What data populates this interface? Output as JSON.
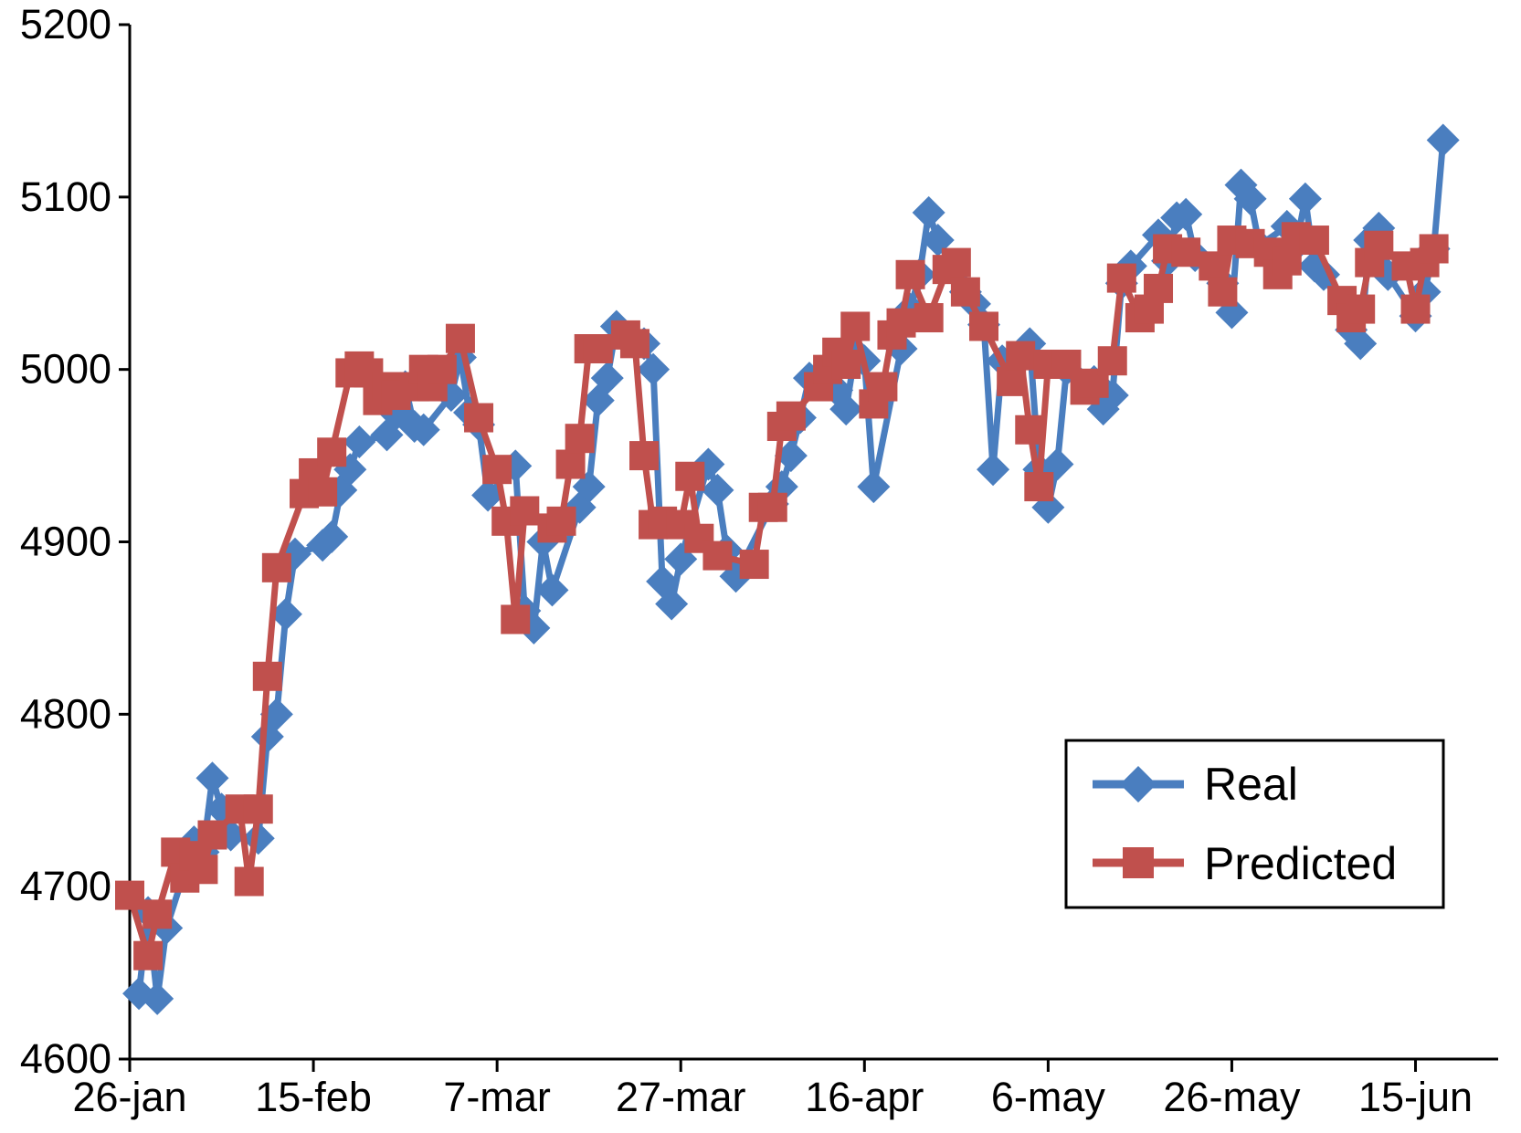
{
  "chart_data": {
    "type": "line",
    "title": "",
    "xlabel": "",
    "ylabel": "",
    "x_tick_labels": [
      "26-jan",
      "15-feb",
      "7-mar",
      "27-mar",
      "16-apr",
      "6-may",
      "26-may",
      "15-jun"
    ],
    "x_tick_dates": [
      "2015-01-26",
      "2015-02-15",
      "2015-03-07",
      "2015-03-27",
      "2015-04-16",
      "2015-05-06",
      "2015-05-26",
      "2015-06-15"
    ],
    "xlim": [
      "2015-01-26",
      "2015-06-24"
    ],
    "ylim": [
      4600,
      5200
    ],
    "y_ticks": [
      4600,
      4700,
      4800,
      4900,
      5000,
      5100,
      5200
    ],
    "grid": false,
    "legend_position": "lower-right",
    "series": [
      {
        "name": "Real",
        "color": "#4a7ebf",
        "marker": "diamond",
        "points": [
          [
            "2015-01-27",
            4638
          ],
          [
            "2015-01-28",
            4685
          ],
          [
            "2015-01-29",
            4635
          ],
          [
            "2015-01-30",
            4676
          ],
          [
            "2015-02-02",
            4726
          ],
          [
            "2015-02-03",
            4720
          ],
          [
            "2015-02-04",
            4763
          ],
          [
            "2015-02-05",
            4745
          ],
          [
            "2015-02-06",
            4730
          ],
          [
            "2015-02-09",
            4728
          ],
          [
            "2015-02-10",
            4787
          ],
          [
            "2015-02-11",
            4800
          ],
          [
            "2015-02-12",
            4858
          ],
          [
            "2015-02-13",
            4893
          ],
          [
            "2015-02-16",
            4898
          ],
          [
            "2015-02-17",
            4903
          ],
          [
            "2015-02-18",
            4930
          ],
          [
            "2015-02-19",
            4942
          ],
          [
            "2015-02-20",
            4958
          ],
          [
            "2015-02-23",
            4962
          ],
          [
            "2015-02-24",
            4974
          ],
          [
            "2015-02-25",
            4990
          ],
          [
            "2015-02-26",
            4967
          ],
          [
            "2015-02-27",
            4965
          ],
          [
            "2015-03-02",
            4985
          ],
          [
            "2015-03-03",
            5007
          ],
          [
            "2015-03-04",
            4975
          ],
          [
            "2015-03-05",
            4968
          ],
          [
            "2015-03-06",
            4927
          ],
          [
            "2015-03-09",
            4944
          ],
          [
            "2015-03-10",
            4860
          ],
          [
            "2015-03-11",
            4850
          ],
          [
            "2015-03-12",
            4900
          ],
          [
            "2015-03-13",
            4872
          ],
          [
            "2015-03-16",
            4920
          ],
          [
            "2015-03-17",
            4932
          ],
          [
            "2015-03-18",
            4982
          ],
          [
            "2015-03-19",
            4995
          ],
          [
            "2015-03-20",
            5025
          ],
          [
            "2015-03-23",
            5015
          ],
          [
            "2015-03-24",
            5000
          ],
          [
            "2015-03-25",
            4877
          ],
          [
            "2015-03-26",
            4864
          ],
          [
            "2015-03-27",
            4890
          ],
          [
            "2015-03-30",
            4945
          ],
          [
            "2015-03-31",
            4930
          ],
          [
            "2015-04-01",
            4895
          ],
          [
            "2015-04-02",
            4880
          ],
          [
            "2015-04-06",
            4922
          ],
          [
            "2015-04-07",
            4932
          ],
          [
            "2015-04-08",
            4950
          ],
          [
            "2015-04-09",
            4972
          ],
          [
            "2015-04-10",
            4995
          ],
          [
            "2015-04-13",
            4988
          ],
          [
            "2015-04-14",
            4977
          ],
          [
            "2015-04-15",
            5010
          ],
          [
            "2015-04-16",
            5005
          ],
          [
            "2015-04-17",
            4932
          ],
          [
            "2015-04-20",
            5012
          ],
          [
            "2015-04-21",
            5035
          ],
          [
            "2015-04-22",
            5055
          ],
          [
            "2015-04-23",
            5091
          ],
          [
            "2015-04-24",
            5075
          ],
          [
            "2015-04-27",
            5045
          ],
          [
            "2015-04-28",
            5038
          ],
          [
            "2015-04-29",
            5026
          ],
          [
            "2015-04-30",
            4942
          ],
          [
            "2015-05-01",
            5005
          ],
          [
            "2015-05-04",
            5015
          ],
          [
            "2015-05-05",
            4942
          ],
          [
            "2015-05-06",
            4920
          ],
          [
            "2015-05-07",
            4945
          ],
          [
            "2015-05-08",
            5000
          ],
          [
            "2015-05-11",
            4993
          ],
          [
            "2015-05-12",
            4977
          ],
          [
            "2015-05-13",
            4985
          ],
          [
            "2015-05-14",
            5050
          ],
          [
            "2015-05-15",
            5060
          ],
          [
            "2015-05-18",
            5078
          ],
          [
            "2015-05-19",
            5063
          ],
          [
            "2015-05-20",
            5088
          ],
          [
            "2015-05-21",
            5090
          ],
          [
            "2015-05-22",
            5066
          ],
          [
            "2015-05-25",
            5050
          ],
          [
            "2015-05-26",
            5033
          ],
          [
            "2015-05-27",
            5107
          ],
          [
            "2015-05-28",
            5099
          ],
          [
            "2015-05-29",
            5072
          ],
          [
            "2015-06-01",
            5083
          ],
          [
            "2015-06-02",
            5072
          ],
          [
            "2015-06-03",
            5099
          ],
          [
            "2015-06-04",
            5060
          ],
          [
            "2015-06-05",
            5055
          ],
          [
            "2015-06-08",
            5023
          ],
          [
            "2015-06-09",
            5015
          ],
          [
            "2015-06-10",
            5075
          ],
          [
            "2015-06-11",
            5082
          ],
          [
            "2015-06-12",
            5055
          ],
          [
            "2015-06-15",
            5031
          ],
          [
            "2015-06-16",
            5045
          ],
          [
            "2015-06-17",
            5070
          ],
          [
            "2015-06-18",
            5133
          ]
        ]
      },
      {
        "name": "Predicted",
        "color": "#c0504d",
        "marker": "square",
        "points": [
          [
            "2015-01-26",
            4695
          ],
          [
            "2015-01-28",
            4660
          ],
          [
            "2015-01-29",
            4684
          ],
          [
            "2015-01-31",
            4720
          ],
          [
            "2015-02-01",
            4705
          ],
          [
            "2015-02-02",
            4718
          ],
          [
            "2015-02-03",
            4710
          ],
          [
            "2015-02-04",
            4730
          ],
          [
            "2015-02-07",
            4745
          ],
          [
            "2015-02-08",
            4703
          ],
          [
            "2015-02-09",
            4745
          ],
          [
            "2015-02-10",
            4822
          ],
          [
            "2015-02-11",
            4885
          ],
          [
            "2015-02-14",
            4928
          ],
          [
            "2015-02-15",
            4940
          ],
          [
            "2015-02-16",
            4929
          ],
          [
            "2015-02-17",
            4952
          ],
          [
            "2015-02-19",
            4998
          ],
          [
            "2015-02-20",
            5002
          ],
          [
            "2015-02-21",
            4998
          ],
          [
            "2015-02-22",
            4982
          ],
          [
            "2015-02-23",
            4990
          ],
          [
            "2015-02-24",
            4985
          ],
          [
            "2015-02-26",
            4990
          ],
          [
            "2015-02-27",
            5000
          ],
          [
            "2015-02-28",
            4990
          ],
          [
            "2015-03-01",
            5000
          ],
          [
            "2015-03-03",
            5018
          ],
          [
            "2015-03-05",
            4972
          ],
          [
            "2015-03-07",
            4942
          ],
          [
            "2015-03-08",
            4912
          ],
          [
            "2015-03-09",
            4855
          ],
          [
            "2015-03-10",
            4918
          ],
          [
            "2015-03-13",
            4908
          ],
          [
            "2015-03-14",
            4912
          ],
          [
            "2015-03-15",
            4945
          ],
          [
            "2015-03-16",
            4960
          ],
          [
            "2015-03-17",
            5012
          ],
          [
            "2015-03-18",
            5012
          ],
          [
            "2015-03-21",
            5020
          ],
          [
            "2015-03-22",
            5015
          ],
          [
            "2015-03-23",
            4950
          ],
          [
            "2015-03-24",
            4910
          ],
          [
            "2015-03-25",
            4912
          ],
          [
            "2015-03-27",
            4910
          ],
          [
            "2015-03-28",
            4938
          ],
          [
            "2015-03-29",
            4902
          ],
          [
            "2015-03-31",
            4892
          ],
          [
            "2015-04-04",
            4887
          ],
          [
            "2015-04-05",
            4920
          ],
          [
            "2015-04-06",
            4920
          ],
          [
            "2015-04-07",
            4967
          ],
          [
            "2015-04-08",
            4973
          ],
          [
            "2015-04-11",
            4990
          ],
          [
            "2015-04-12",
            5000
          ],
          [
            "2015-04-13",
            5010
          ],
          [
            "2015-04-14",
            5003
          ],
          [
            "2015-04-15",
            5025
          ],
          [
            "2015-04-17",
            4980
          ],
          [
            "2015-04-18",
            4990
          ],
          [
            "2015-04-19",
            5020
          ],
          [
            "2015-04-20",
            5027
          ],
          [
            "2015-04-21",
            5055
          ],
          [
            "2015-04-23",
            5030
          ],
          [
            "2015-04-25",
            5058
          ],
          [
            "2015-04-26",
            5062
          ],
          [
            "2015-04-27",
            5045
          ],
          [
            "2015-04-29",
            5025
          ],
          [
            "2015-05-02",
            4993
          ],
          [
            "2015-05-03",
            5008
          ],
          [
            "2015-05-04",
            4965
          ],
          [
            "2015-05-05",
            4932
          ],
          [
            "2015-05-06",
            5003
          ],
          [
            "2015-05-08",
            5003
          ],
          [
            "2015-05-10",
            4988
          ],
          [
            "2015-05-11",
            4992
          ],
          [
            "2015-05-13",
            5005
          ],
          [
            "2015-05-14",
            5053
          ],
          [
            "2015-05-16",
            5030
          ],
          [
            "2015-05-17",
            5035
          ],
          [
            "2015-05-18",
            5047
          ],
          [
            "2015-05-19",
            5070
          ],
          [
            "2015-05-21",
            5068
          ],
          [
            "2015-05-24",
            5060
          ],
          [
            "2015-05-25",
            5045
          ],
          [
            "2015-05-26",
            5075
          ],
          [
            "2015-05-28",
            5073
          ],
          [
            "2015-05-30",
            5068
          ],
          [
            "2015-05-31",
            5055
          ],
          [
            "2015-06-01",
            5063
          ],
          [
            "2015-06-02",
            5077
          ],
          [
            "2015-06-04",
            5075
          ],
          [
            "2015-06-07",
            5040
          ],
          [
            "2015-06-08",
            5030
          ],
          [
            "2015-06-09",
            5035
          ],
          [
            "2015-06-10",
            5062
          ],
          [
            "2015-06-11",
            5072
          ],
          [
            "2015-06-14",
            5060
          ],
          [
            "2015-06-15",
            5035
          ],
          [
            "2015-06-16",
            5062
          ],
          [
            "2015-06-17",
            5070
          ]
        ]
      }
    ]
  }
}
